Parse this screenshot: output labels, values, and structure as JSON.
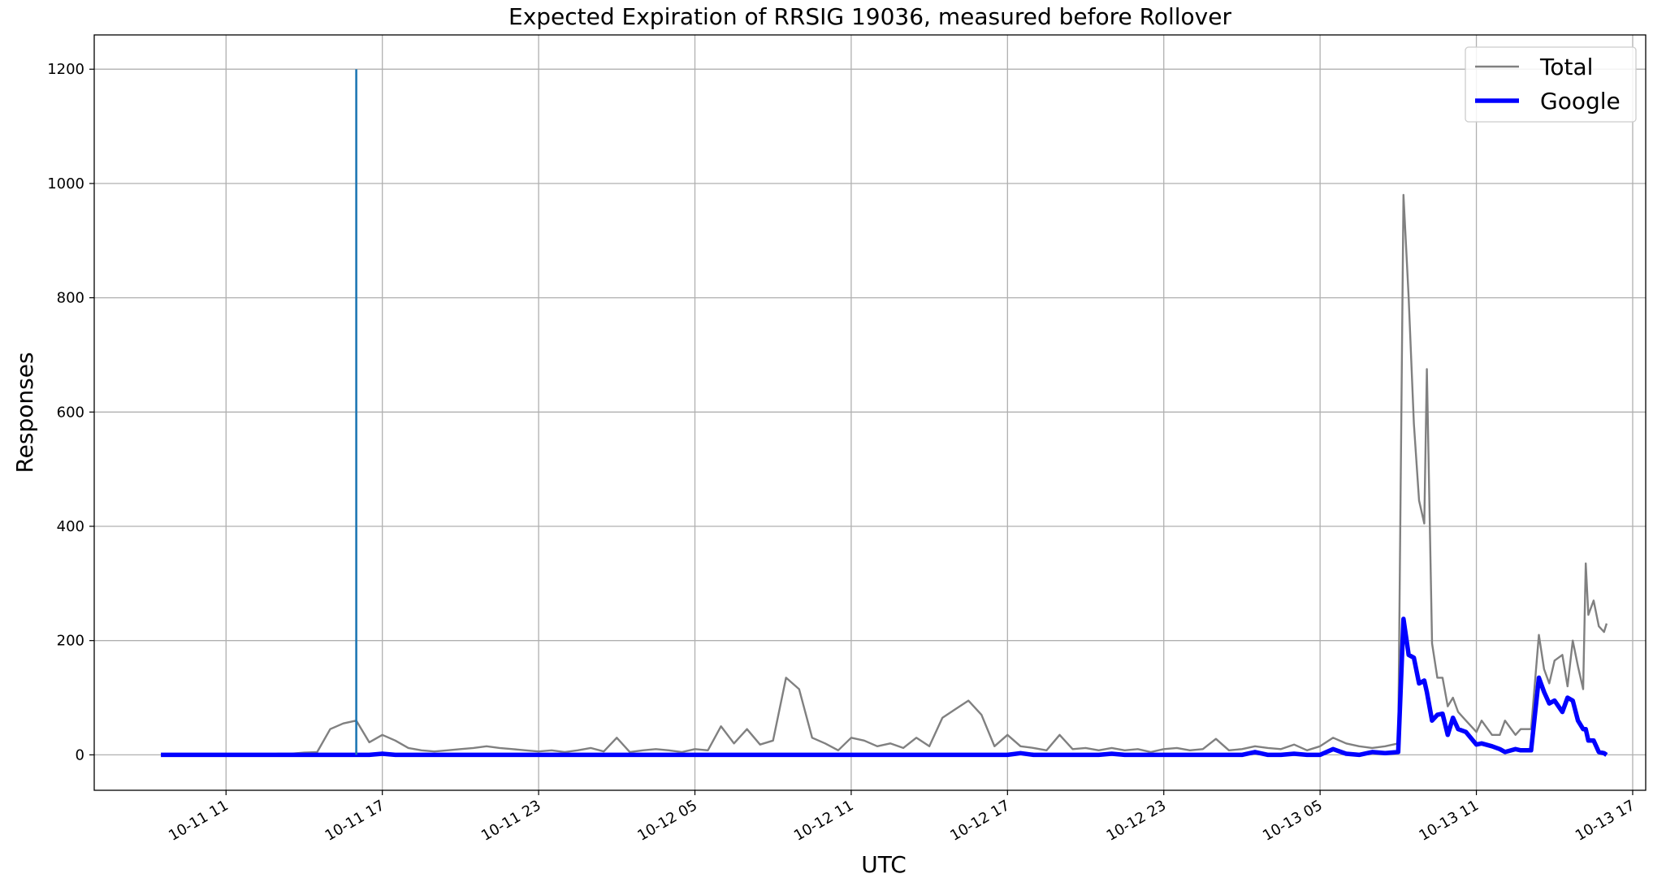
{
  "chart_data": {
    "type": "line",
    "title": "Expected Expiration of RRSIG 19036, measured before Rollover",
    "xlabel": "UTC",
    "ylabel": "Responses",
    "x": [
      8.5,
      9,
      9.5,
      10,
      10.5,
      11,
      11.5,
      12,
      12.5,
      13,
      13.5,
      14,
      14.5,
      15,
      15.5,
      16,
      16.5,
      17,
      17.5,
      18,
      18.5,
      19,
      19.5,
      20,
      20.5,
      21,
      21.5,
      22,
      22.5,
      23,
      23.5,
      24,
      24.5,
      25,
      25.5,
      26,
      26.5,
      27,
      27.5,
      28,
      28.5,
      29,
      29.5,
      30,
      30.5,
      31,
      31.5,
      32,
      32.5,
      33,
      33.5,
      34,
      34.5,
      35,
      35.5,
      36,
      36.5,
      37,
      37.5,
      38,
      38.5,
      39,
      39.5,
      40,
      40.5,
      41,
      41.5,
      42,
      42.5,
      43,
      43.5,
      44,
      44.5,
      45,
      45.5,
      46,
      46.5,
      47,
      47.5,
      48,
      48.5,
      49,
      49.5,
      50,
      50.5,
      51,
      51.5,
      52,
      52.5,
      53,
      53.5,
      54,
      54.5,
      55,
      55.5,
      56,
      56.2,
      56.4,
      56.6,
      56.8,
      57,
      57.1,
      57.3,
      57.5,
      57.7,
      57.9,
      58.1,
      58.3,
      58.6,
      59,
      59.2,
      59.6,
      59.9,
      60.1,
      60.5,
      60.7,
      61.1,
      61.4,
      61.6,
      61.8,
      62,
      62.3,
      62.5,
      62.7,
      62.9,
      63.1,
      63.2,
      63.3,
      63.5,
      63.7,
      63.9,
      64
    ],
    "series": [
      {
        "name": "Total",
        "color": "#808080",
        "values": [
          0,
          0,
          0,
          0,
          0,
          1,
          0,
          1,
          0,
          2,
          2,
          4,
          5,
          45,
          55,
          60,
          22,
          35,
          25,
          12,
          8,
          6,
          8,
          10,
          12,
          15,
          12,
          10,
          8,
          6,
          8,
          5,
          8,
          12,
          6,
          30,
          5,
          8,
          10,
          8,
          5,
          10,
          8,
          50,
          20,
          45,
          18,
          25,
          135,
          115,
          30,
          20,
          8,
          30,
          25,
          15,
          20,
          12,
          30,
          15,
          65,
          80,
          95,
          70,
          15,
          35,
          15,
          12,
          8,
          35,
          10,
          12,
          8,
          12,
          8,
          10,
          5,
          10,
          12,
          8,
          10,
          28,
          8,
          10,
          15,
          12,
          10,
          18,
          8,
          15,
          30,
          20,
          15,
          12,
          15,
          20,
          980,
          800,
          580,
          445,
          405,
          675,
          195,
          135,
          135,
          85,
          100,
          75,
          60,
          40,
          60,
          35,
          35,
          60,
          35,
          45,
          45,
          210,
          150,
          125,
          165,
          175,
          120,
          200,
          155,
          115,
          335,
          245,
          270,
          225,
          215,
          230
        ]
      },
      {
        "name": "Google",
        "color": "#0000ff",
        "values": [
          0,
          0,
          0,
          0,
          0,
          0,
          0,
          0,
          0,
          0,
          0,
          0,
          0,
          0,
          0,
          0,
          0,
          2,
          0,
          0,
          0,
          0,
          0,
          0,
          0,
          0,
          0,
          0,
          0,
          0,
          0,
          0,
          0,
          0,
          0,
          0,
          0,
          0,
          0,
          0,
          0,
          0,
          0,
          0,
          0,
          0,
          0,
          0,
          0,
          0,
          0,
          0,
          0,
          0,
          0,
          0,
          0,
          0,
          0,
          0,
          0,
          0,
          0,
          0,
          0,
          0,
          3,
          0,
          0,
          0,
          0,
          0,
          0,
          2,
          0,
          0,
          0,
          0,
          0,
          0,
          0,
          0,
          0,
          0,
          5,
          0,
          0,
          2,
          0,
          0,
          10,
          2,
          0,
          5,
          3,
          5,
          238,
          175,
          170,
          125,
          130,
          110,
          60,
          70,
          72,
          35,
          65,
          45,
          40,
          18,
          20,
          15,
          10,
          5,
          10,
          8,
          8,
          135,
          110,
          90,
          95,
          75,
          100,
          95,
          60,
          45,
          45,
          25,
          25,
          5,
          3,
          0
        ]
      }
    ],
    "vline": {
      "x": 16,
      "y": [
        0,
        1200
      ],
      "color": "#1f77b4"
    },
    "xlim": [
      5.94,
      65.5
    ],
    "ylim": [
      -62,
      1260
    ],
    "yticks": [
      0,
      200,
      400,
      600,
      800,
      1000,
      1200
    ],
    "xticks": [
      {
        "value": 11,
        "label": "10-11 11"
      },
      {
        "value": 17,
        "label": "10-11 17"
      },
      {
        "value": 23,
        "label": "10-11 23"
      },
      {
        "value": 29,
        "label": "10-12 05"
      },
      {
        "value": 35,
        "label": "10-12 11"
      },
      {
        "value": 41,
        "label": "10-12 17"
      },
      {
        "value": 47,
        "label": "10-12 23"
      },
      {
        "value": 53,
        "label": "10-13 05"
      },
      {
        "value": 59,
        "label": "10-13 11"
      },
      {
        "value": 65,
        "label": "10-13 17"
      }
    ],
    "grid": true,
    "legend": "upper right"
  }
}
